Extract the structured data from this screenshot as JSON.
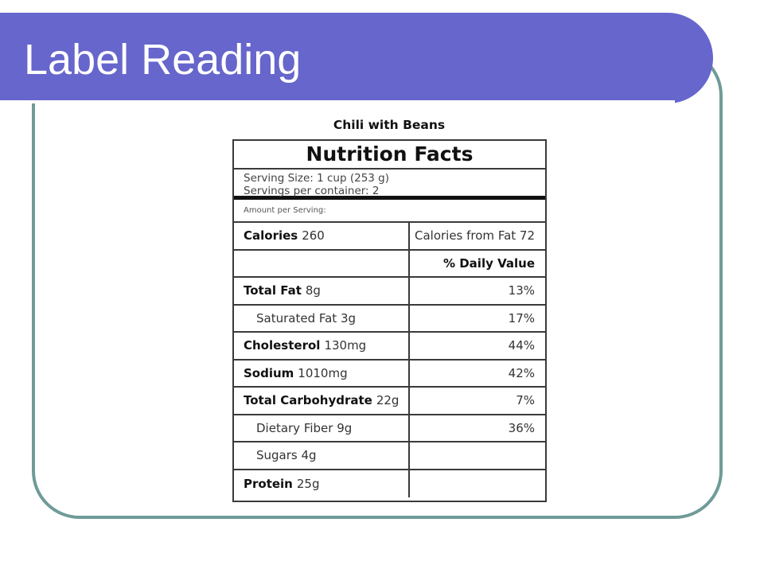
{
  "slide": {
    "title": "Label Reading"
  },
  "label": {
    "product_name": "Chili with Beans",
    "heading": "Nutrition Facts",
    "serving_size": "Serving Size:  1 cup (253 g)",
    "servings_per_container": "Servings per container:  2",
    "amount_per_serving": "Amount per Serving:",
    "calories_label": "Calories",
    "calories_value": "260",
    "calories_from_fat": "Calories from Fat 72",
    "daily_value_header": "% Daily Value",
    "rows": [
      {
        "name": "Total Fat",
        "amount": "8g",
        "dv": "13%"
      },
      {
        "name": "Saturated Fat",
        "amount": "3g",
        "dv": "17%"
      },
      {
        "name": "Cholesterol",
        "amount": "130mg",
        "dv": "44%"
      },
      {
        "name": "Sodium",
        "amount": "1010mg",
        "dv": "42%"
      },
      {
        "name": "Total Carbohydrate",
        "amount": "22g",
        "dv": "7%"
      },
      {
        "name": "Dietary Fiber",
        "amount": "9g",
        "dv": "36%"
      },
      {
        "name": "Sugars",
        "amount": "4g",
        "dv": ""
      },
      {
        "name": "Protein",
        "amount": "25g",
        "dv": ""
      }
    ]
  },
  "colors": {
    "title_bar": "#6666cc",
    "frame_border": "#6f9b98"
  }
}
